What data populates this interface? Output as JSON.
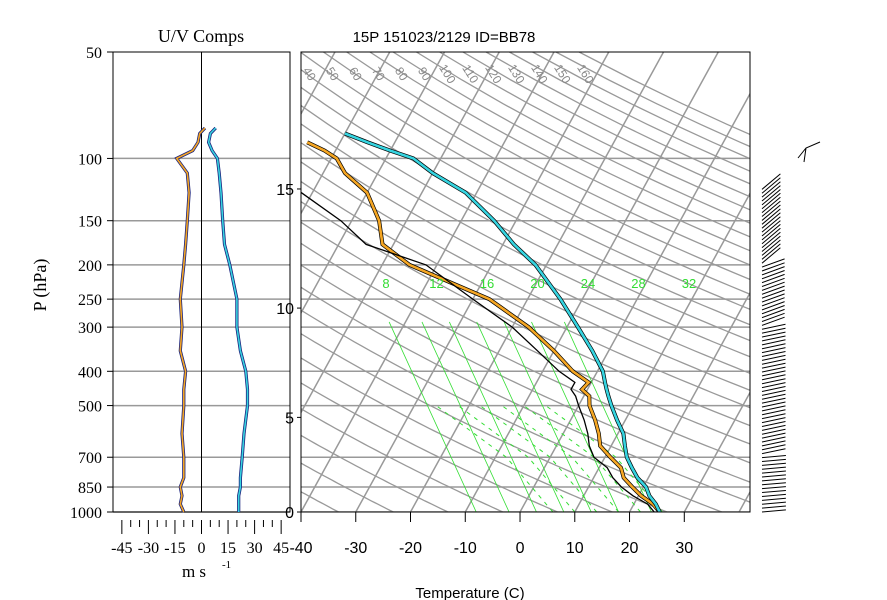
{
  "header": {
    "title": "15P 151023/2129 ID=BB78"
  },
  "uv_panel": {
    "title": "U/V Comps",
    "xlabel": "m s",
    "xlabel_exp": "-1",
    "ylabel": "P (hPa)"
  },
  "skewt_panel": {
    "xlabel": "Temperature (C)"
  },
  "colors": {
    "temperature": "#f5a623",
    "dewpoint": "#000000",
    "parcel": "#36d4e0",
    "u_comp": "#f5a623",
    "v_comp": "#36d4e0",
    "isotherm": "#999999",
    "mixing_ratio": "#33dd33"
  },
  "chart_data": [
    {
      "type": "line",
      "title": "U/V Comps",
      "xlabel": "m s-1",
      "ylabel": "P (hPa)",
      "log_y": true,
      "xlim": [
        -50,
        50
      ],
      "ylim": [
        1000,
        50
      ],
      "x_tick_labels": [
        "-45",
        "-30",
        "-15",
        "0",
        "15",
        "30",
        "45"
      ],
      "y_tick_labels": [
        "50",
        "100",
        "150",
        "200",
        "250",
        "300",
        "400",
        "500",
        "700",
        "850",
        "1000"
      ],
      "pressure": [
        1000,
        950,
        900,
        850,
        800,
        700,
        600,
        500,
        450,
        400,
        350,
        300,
        250,
        200,
        175,
        150,
        125,
        110,
        100,
        95,
        90,
        85,
        82
      ],
      "series": [
        {
          "name": "",
          "values": [
            -10,
            -12,
            -11,
            -12,
            -10,
            -10,
            -11,
            -10,
            -10,
            -9,
            -12,
            -11,
            -12,
            -10,
            -9,
            -8,
            -7,
            -8,
            -14,
            -5,
            -2,
            -1,
            2
          ]
        },
        {
          "name": "",
          "values": [
            21,
            21,
            21,
            22,
            22,
            23,
            24,
            26,
            26,
            25,
            22,
            20,
            20,
            16,
            13,
            12,
            11,
            10,
            9,
            6,
            4,
            5,
            8
          ]
        }
      ]
    },
    {
      "type": "line",
      "title": "15P 151023/2129 ID=BB78",
      "xlabel": "Temperature (C)",
      "ylabel": "",
      "log_y": true,
      "xlim": [
        -40,
        40
      ],
      "ylim": [
        1000,
        50
      ],
      "x_tick_labels": [
        "-40",
        "-30",
        "-20",
        "-10",
        "0",
        "10",
        "20",
        "30"
      ],
      "height_km_labels": [
        "0",
        "5",
        "10",
        "15"
      ],
      "mixing_ratio_labels": [
        "8",
        "12",
        "16",
        "20",
        "24",
        "28",
        "32"
      ],
      "theta_labels": [
        "40",
        "50",
        "60",
        "70",
        "80",
        "90",
        "100",
        "110",
        "120",
        "130",
        "140",
        "150",
        "160"
      ],
      "series": [
        {
          "name": "",
          "pressure": [
            1000,
            950,
            900,
            850,
            800,
            750,
            700,
            650,
            600,
            550,
            500,
            470,
            450,
            430,
            400,
            350,
            300,
            250,
            200,
            175,
            150,
            125,
            110,
            100,
            95,
            90
          ],
          "values": [
            25.5,
            23.5,
            20.5,
            18,
            15.5,
            14,
            11,
            8,
            6.5,
            4.5,
            2,
            1,
            -1,
            -0.5,
            -4.5,
            -10,
            -17,
            -27,
            -45,
            -52,
            -55,
            -60,
            -66,
            -69,
            -72,
            -76
          ]
        },
        {
          "name": "",
          "pressure": [
            1000,
            950,
            900,
            850,
            800,
            750,
            700,
            650,
            600,
            550,
            500,
            470,
            450,
            430,
            400,
            350,
            300,
            250,
            200,
            175,
            150,
            125,
            110,
            100,
            95,
            90,
            85
          ],
          "values": [
            24.5,
            22.5,
            19,
            16,
            13.5,
            11.5,
            8,
            6,
            4.5,
            2.5,
            0,
            -1.5,
            -3,
            -3,
            -7,
            -13,
            -20,
            -30,
            -42,
            -55,
            -62,
            -72,
            -78,
            -81,
            -85,
            -86,
            -84
          ]
        },
        {
          "name": "",
          "pressure": [
            1000,
            950,
            900,
            850,
            800,
            750,
            700,
            650,
            600,
            550,
            500,
            470,
            450,
            430,
            400,
            350,
            300,
            250,
            200,
            175,
            150,
            125,
            110,
            100,
            95,
            90,
            85
          ],
          "values": [
            25.5,
            24,
            22,
            20.5,
            18,
            16,
            14,
            12.5,
            11,
            8.5,
            6,
            4.5,
            3.5,
            2.5,
            1,
            -3,
            -8,
            -14,
            -22,
            -28,
            -34,
            -42,
            -50,
            -55,
            -60,
            -65,
            -70
          ]
        }
      ]
    }
  ]
}
